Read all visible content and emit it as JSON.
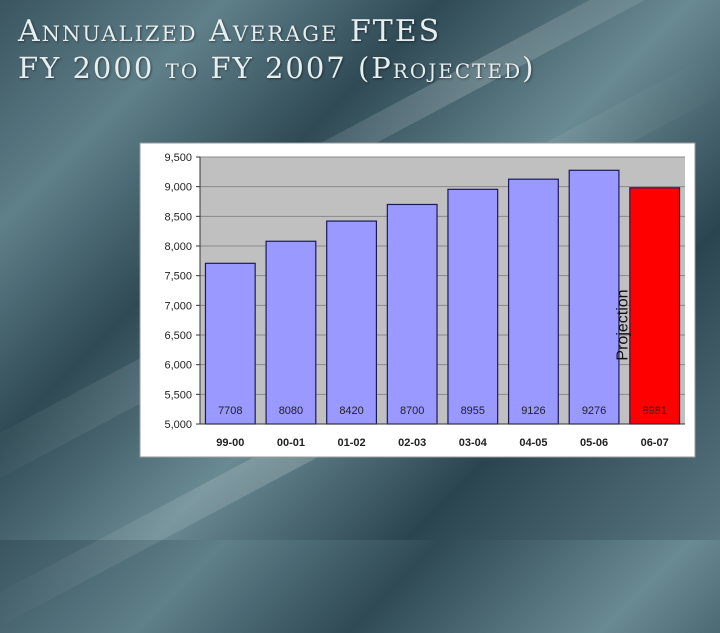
{
  "slide": {
    "title_line1": "Annualized Average FTES",
    "title_line2": "FY 2000 to FY 2007 (Projected)"
  },
  "chart_data": {
    "type": "bar",
    "categories": [
      "99-00",
      "00-01",
      "01-02",
      "02-03",
      "03-04",
      "04-05",
      "05-06",
      "06-07"
    ],
    "values": [
      7708,
      8080,
      8420,
      8700,
      8955,
      9126,
      9276,
      8981
    ],
    "data_labels": [
      "7708",
      "8080",
      "8420",
      "8700",
      "8955",
      "9126",
      "9276",
      "8981"
    ],
    "ylim": [
      5000,
      9500
    ],
    "yticks": [
      5000,
      5500,
      6000,
      6500,
      7000,
      7500,
      8000,
      8500,
      9000,
      9500
    ],
    "ytick_labels": [
      "5,000",
      "5,500",
      "6,000",
      "6,500",
      "7,000",
      "7,500",
      "8,000",
      "8,500",
      "9,000",
      "9,500"
    ],
    "grid": true,
    "bar_color": "#9999ff",
    "highlight_color": "#ff0000",
    "highlight_index": 7,
    "annotation": "Projection",
    "title": "",
    "xlabel": "",
    "ylabel": ""
  }
}
